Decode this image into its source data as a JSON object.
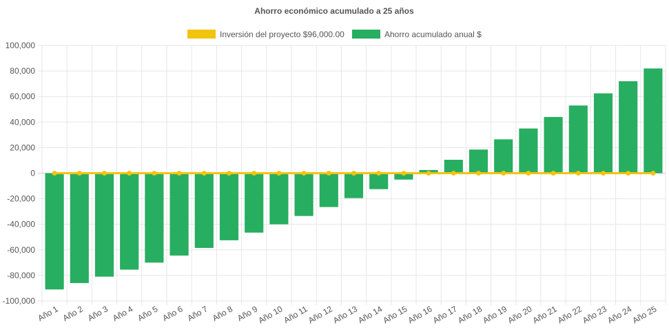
{
  "chart_data": {
    "type": "bar",
    "title": "Ahorro económico acumulado a 25 años",
    "categories": [
      "Año 1",
      "Año 2",
      "Año 3",
      "Año 4",
      "Año 5",
      "Año 6",
      "Año 7",
      "Año 8",
      "Año 9",
      "Año 10",
      "Año 11",
      "Año 12",
      "Año 13",
      "Año 14",
      "Año 15",
      "Año 16",
      "Año 17",
      "Año 18",
      "Año 19",
      "Año 20",
      "Año 21",
      "Año 22",
      "Año 23",
      "Año 24",
      "Año 25"
    ],
    "series": [
      {
        "name": "Inversión del proyecto $96,000.00",
        "render": "line",
        "color": "#f1c40f",
        "values": [
          0,
          0,
          0,
          0,
          0,
          0,
          0,
          0,
          0,
          0,
          0,
          0,
          0,
          0,
          0,
          0,
          0,
          0,
          0,
          0,
          0,
          0,
          0,
          0,
          0
        ]
      },
      {
        "name": "Ahorro acumulado anual $",
        "render": "bar",
        "color": "#27ae60",
        "values": [
          -91000,
          -86000,
          -81000,
          -75500,
          -70000,
          -64500,
          -58500,
          -52500,
          -46500,
          -40000,
          -33500,
          -26500,
          -19500,
          -12500,
          -5000,
          2500,
          10500,
          18500,
          26500,
          35000,
          44000,
          53000,
          62500,
          72000,
          82000
        ]
      }
    ],
    "ylim": [
      -100000,
      100000
    ],
    "yticks": [
      "100,000",
      "80,000",
      "60,000",
      "40,000",
      "20,000",
      "0",
      "-20,000",
      "-40,000",
      "-60,000",
      "-80,000",
      "-100,000"
    ],
    "ytick_values": [
      100000,
      80000,
      60000,
      40000,
      20000,
      0,
      -20000,
      -40000,
      -60000,
      -80000,
      -100000
    ],
    "grid": true,
    "legend_position": "top"
  }
}
